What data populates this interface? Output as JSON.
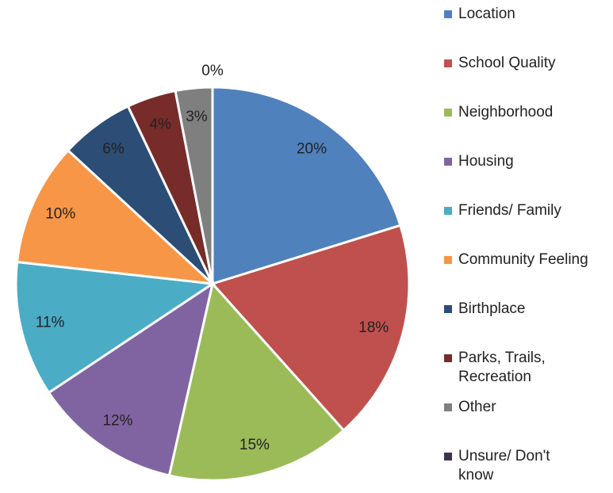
{
  "chart_data": {
    "type": "pie",
    "categories": [
      "Location",
      "School Quality",
      "Neighborhood",
      "Housing",
      "Friends/ Family",
      "Community Feeling",
      "Birthplace",
      "Parks, Trails, Recreation",
      "Other",
      "Unsure/ Don't know"
    ],
    "values": [
      20,
      18,
      15,
      12,
      11,
      10,
      6,
      4,
      3,
      0
    ],
    "value_labels": [
      "20%",
      "18%",
      "15%",
      "12%",
      "11%",
      "10%",
      "6%",
      "4%",
      "3%",
      "0%"
    ],
    "colors": [
      "#4f81bd",
      "#c0504d",
      "#9bbb59",
      "#8064a2",
      "#4bacc6",
      "#f79646",
      "#2c4d75",
      "#772c2a",
      "#7f7f7f",
      "#3f3151"
    ],
    "legend": "right"
  }
}
